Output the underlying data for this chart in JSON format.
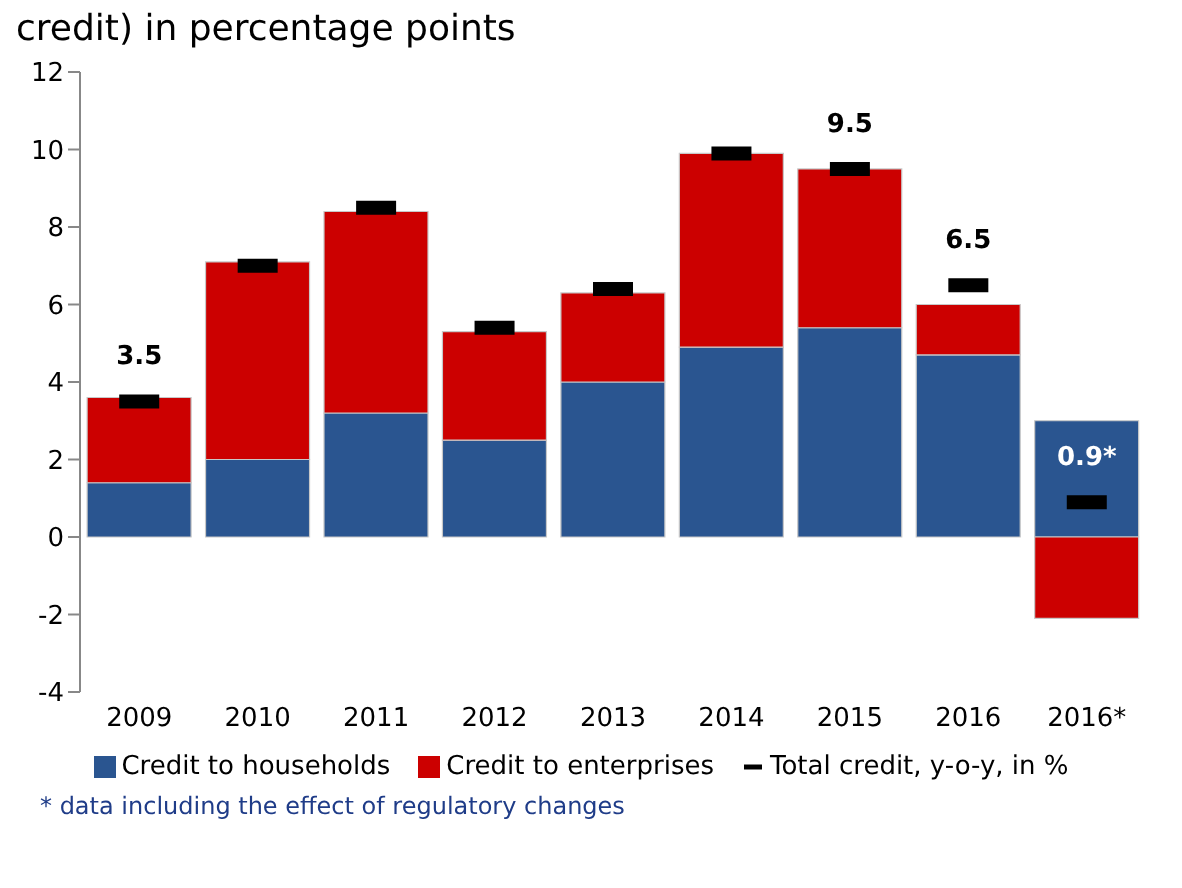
{
  "chart_data": {
    "type": "bar",
    "title": "credit) in percentage points",
    "stacked": true,
    "categories": [
      "2009",
      "2010",
      "2011",
      "2012",
      "2013",
      "2014",
      "2015",
      "2016",
      "2016*"
    ],
    "series": [
      {
        "name": "Credit to households",
        "color": "#2a5590",
        "values": [
          1.4,
          2.0,
          3.2,
          2.5,
          4.0,
          4.9,
          5.4,
          4.7,
          3.0
        ]
      },
      {
        "name": "Credit to enterprises",
        "color": "#cc0000",
        "values": [
          2.2,
          5.1,
          5.2,
          2.8,
          2.3,
          5.0,
          4.1,
          1.3,
          -2.1
        ]
      },
      {
        "name": "Total credit, y-o-y, in %",
        "type": "scatter",
        "color": "#000000",
        "values": [
          3.5,
          7.0,
          8.5,
          5.4,
          6.4,
          9.9,
          9.5,
          6.5,
          0.9
        ],
        "value_labels": [
          "3.5",
          null,
          null,
          null,
          null,
          null,
          "9.5",
          "6.5",
          "0.9*"
        ]
      }
    ],
    "ylim": [
      -4,
      12
    ],
    "yticks": [
      -4,
      -2,
      0,
      2,
      4,
      6,
      8,
      10,
      12
    ],
    "legend": "bottom",
    "annotations": [
      "* data including the effect of regulatory changes"
    ]
  }
}
